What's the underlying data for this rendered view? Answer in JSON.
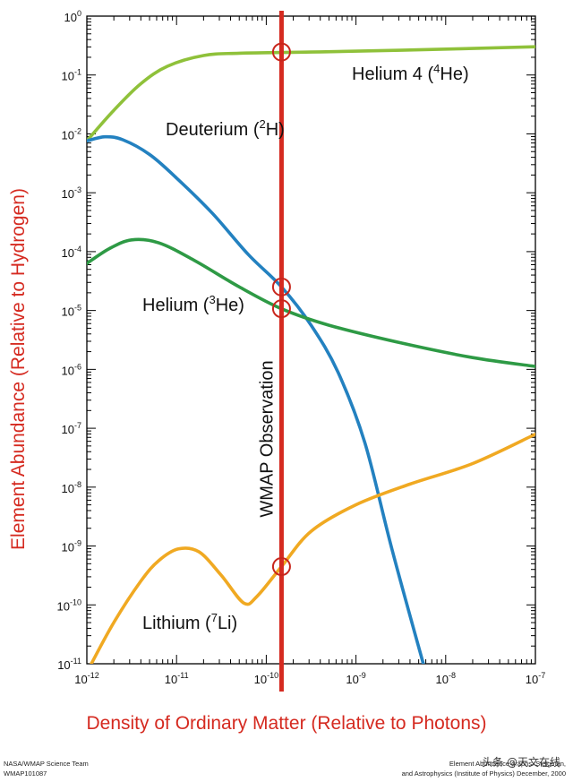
{
  "chart_data": {
    "type": "line",
    "x_scale": "log",
    "y_scale": "log",
    "xlim": [
      1e-12,
      1e-07
    ],
    "ylim": [
      1e-11,
      1
    ],
    "xlabel": "Density of Ordinary Matter (Relative to Photons)",
    "ylabel": "Element Abundance (Relative to Hydrogen)",
    "x_ticks": [
      {
        "base": "10",
        "exp": "-12"
      },
      {
        "base": "10",
        "exp": "-11"
      },
      {
        "base": "10",
        "exp": "-10"
      },
      {
        "base": "10",
        "exp": "-9"
      },
      {
        "base": "10",
        "exp": "-8"
      },
      {
        "base": "10",
        "exp": "-7"
      }
    ],
    "y_ticks": [
      {
        "base": "10",
        "exp": "0"
      },
      {
        "base": "10",
        "exp": "-1"
      },
      {
        "base": "10",
        "exp": "-2"
      },
      {
        "base": "10",
        "exp": "-3"
      },
      {
        "base": "10",
        "exp": "-4"
      },
      {
        "base": "10",
        "exp": "-5"
      },
      {
        "base": "10",
        "exp": "-6"
      },
      {
        "base": "10",
        "exp": "-7"
      },
      {
        "base": "10",
        "exp": "-8"
      },
      {
        "base": "10",
        "exp": "-9"
      },
      {
        "base": "10",
        "exp": "-10"
      },
      {
        "base": "10",
        "exp": "-11"
      }
    ],
    "series": [
      {
        "name": "Helium 4",
        "label": "Helium 4 (",
        "label_sup": "4",
        "label_tail": "He)",
        "color": "#8fc13a",
        "points": [
          [
            -12,
            -2.12
          ],
          [
            -11.7,
            -1.6
          ],
          [
            -11.4,
            -1.15
          ],
          [
            -11.1,
            -0.85
          ],
          [
            -10.7,
            -0.67
          ],
          [
            -10.3,
            -0.63
          ],
          [
            -9.5,
            -0.61
          ],
          [
            -8.5,
            -0.58
          ],
          [
            -7,
            -0.52
          ]
        ]
      },
      {
        "name": "Deuterium",
        "label": "Deuterium (",
        "label_sup": "2",
        "label_tail": "H)",
        "color": "#2381c0",
        "points": [
          [
            -12,
            -2.12
          ],
          [
            -11.8,
            -2.05
          ],
          [
            -11.6,
            -2.1
          ],
          [
            -11.3,
            -2.35
          ],
          [
            -11,
            -2.75
          ],
          [
            -10.6,
            -3.35
          ],
          [
            -10.2,
            -4.05
          ],
          [
            -9.83,
            -4.6
          ],
          [
            -9.5,
            -5.25
          ],
          [
            -9.2,
            -6.05
          ],
          [
            -8.9,
            -7.25
          ],
          [
            -8.6,
            -9.05
          ],
          [
            -8.25,
            -11
          ]
        ]
      },
      {
        "name": "Helium 3",
        "label": "Helium (",
        "label_sup": "3",
        "label_tail": "He)",
        "color": "#2e9a45",
        "points": [
          [
            -12,
            -4.2
          ],
          [
            -11.75,
            -3.95
          ],
          [
            -11.5,
            -3.8
          ],
          [
            -11.2,
            -3.85
          ],
          [
            -10.8,
            -4.15
          ],
          [
            -10.3,
            -4.6
          ],
          [
            -9.83,
            -4.97
          ],
          [
            -9.3,
            -5.25
          ],
          [
            -8.5,
            -5.55
          ],
          [
            -7.7,
            -5.8
          ],
          [
            -7,
            -5.95
          ]
        ]
      },
      {
        "name": "Lithium 7",
        "label": "Lithium (",
        "label_sup": "7",
        "label_tail": "Li)",
        "color": "#f0a922",
        "points": [
          [
            -11.95,
            -11
          ],
          [
            -11.7,
            -10.3
          ],
          [
            -11.4,
            -9.6
          ],
          [
            -11.2,
            -9.25
          ],
          [
            -10.98,
            -9.05
          ],
          [
            -10.75,
            -9.1
          ],
          [
            -10.5,
            -9.5
          ],
          [
            -10.25,
            -9.97
          ],
          [
            -10.1,
            -9.85
          ],
          [
            -9.83,
            -9.35
          ],
          [
            -9.5,
            -8.75
          ],
          [
            -9.0,
            -8.3
          ],
          [
            -8.4,
            -7.95
          ],
          [
            -7.7,
            -7.6
          ],
          [
            -7,
            -7.1
          ]
        ]
      }
    ],
    "observation": {
      "label": "WMAP Observation",
      "x_log": -9.83,
      "color": "#d52a20",
      "marker_y_logs": [
        -0.61,
        -4.6,
        -4.97,
        -9.35
      ]
    }
  },
  "footer": {
    "left_line1": "NASA/WMAP Science Team",
    "left_line2": "WMAP101087",
    "right_line1": "Element Abundance graphs: Steigman,",
    "right_line2": "and Astrophysics (Institute of Physics) December, 2000",
    "right_year_line1": "2000"
  },
  "watermark": "头条 @天文在线"
}
